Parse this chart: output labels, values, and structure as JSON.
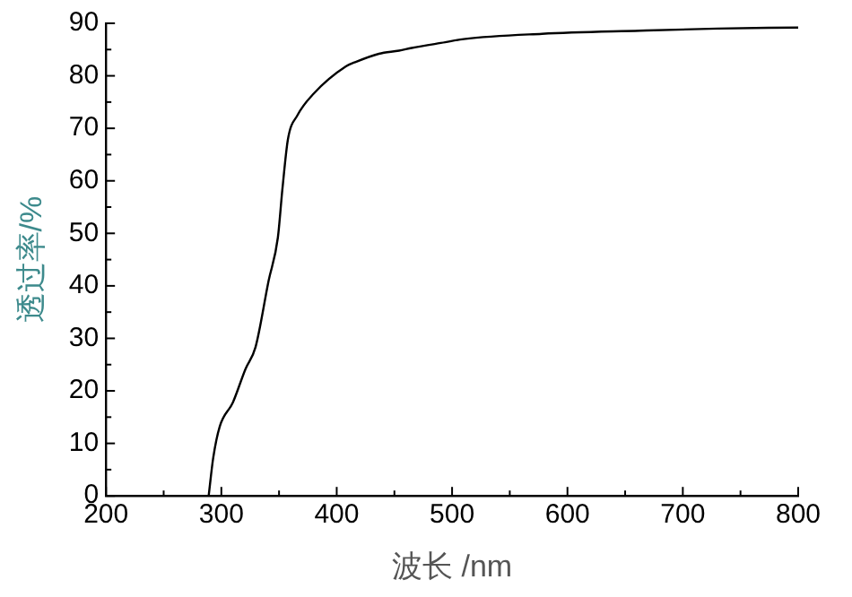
{
  "chart_data": {
    "type": "line",
    "xlabel": "波长 /nm",
    "ylabel": "透过率/%",
    "x": [
      289,
      293,
      298.6,
      310,
      321,
      329.6,
      341,
      349,
      353,
      357.7,
      366,
      380,
      408,
      416,
      436.6,
      454,
      465,
      494,
      510,
      578,
      663,
      730,
      800
    ],
    "series": [
      {
        "color": "#000000",
        "values": [
          0,
          7.3,
          13.2,
          17.8,
          24.2,
          28.3,
          41,
          49.2,
          58.6,
          67.9,
          72.5,
          76.6,
          81.8,
          82.6,
          84.2,
          84.8,
          85.3,
          86.4,
          87.0,
          88.0,
          88.6,
          89.0,
          89.2
        ]
      }
    ],
    "xlim": [
      200,
      800
    ],
    "ylim": [
      0,
      90
    ],
    "xticks": [
      200,
      {
        "value": 250,
        "label": null
      },
      300,
      {
        "value": 350,
        "label": null
      },
      400,
      {
        "value": 450,
        "label": null
      },
      500,
      {
        "value": 550,
        "label": null
      },
      600,
      {
        "value": 650,
        "label": null
      },
      700,
      {
        "value": 750,
        "label": null
      },
      800
    ],
    "yticks": [
      0,
      {
        "value": 5,
        "label": null
      },
      10,
      {
        "value": 15,
        "label": null
      },
      20,
      {
        "value": 25,
        "label": null
      },
      30,
      {
        "value": 35,
        "label": null
      },
      40,
      {
        "value": 45,
        "label": null
      },
      50,
      {
        "value": 55,
        "label": null
      },
      60,
      {
        "value": 65,
        "label": null
      },
      70,
      {
        "value": 75,
        "label": null
      },
      80,
      {
        "value": 85,
        "label": null
      },
      90
    ],
    "grid": false,
    "legend": false,
    "marker": "none",
    "line_style": "solid"
  }
}
